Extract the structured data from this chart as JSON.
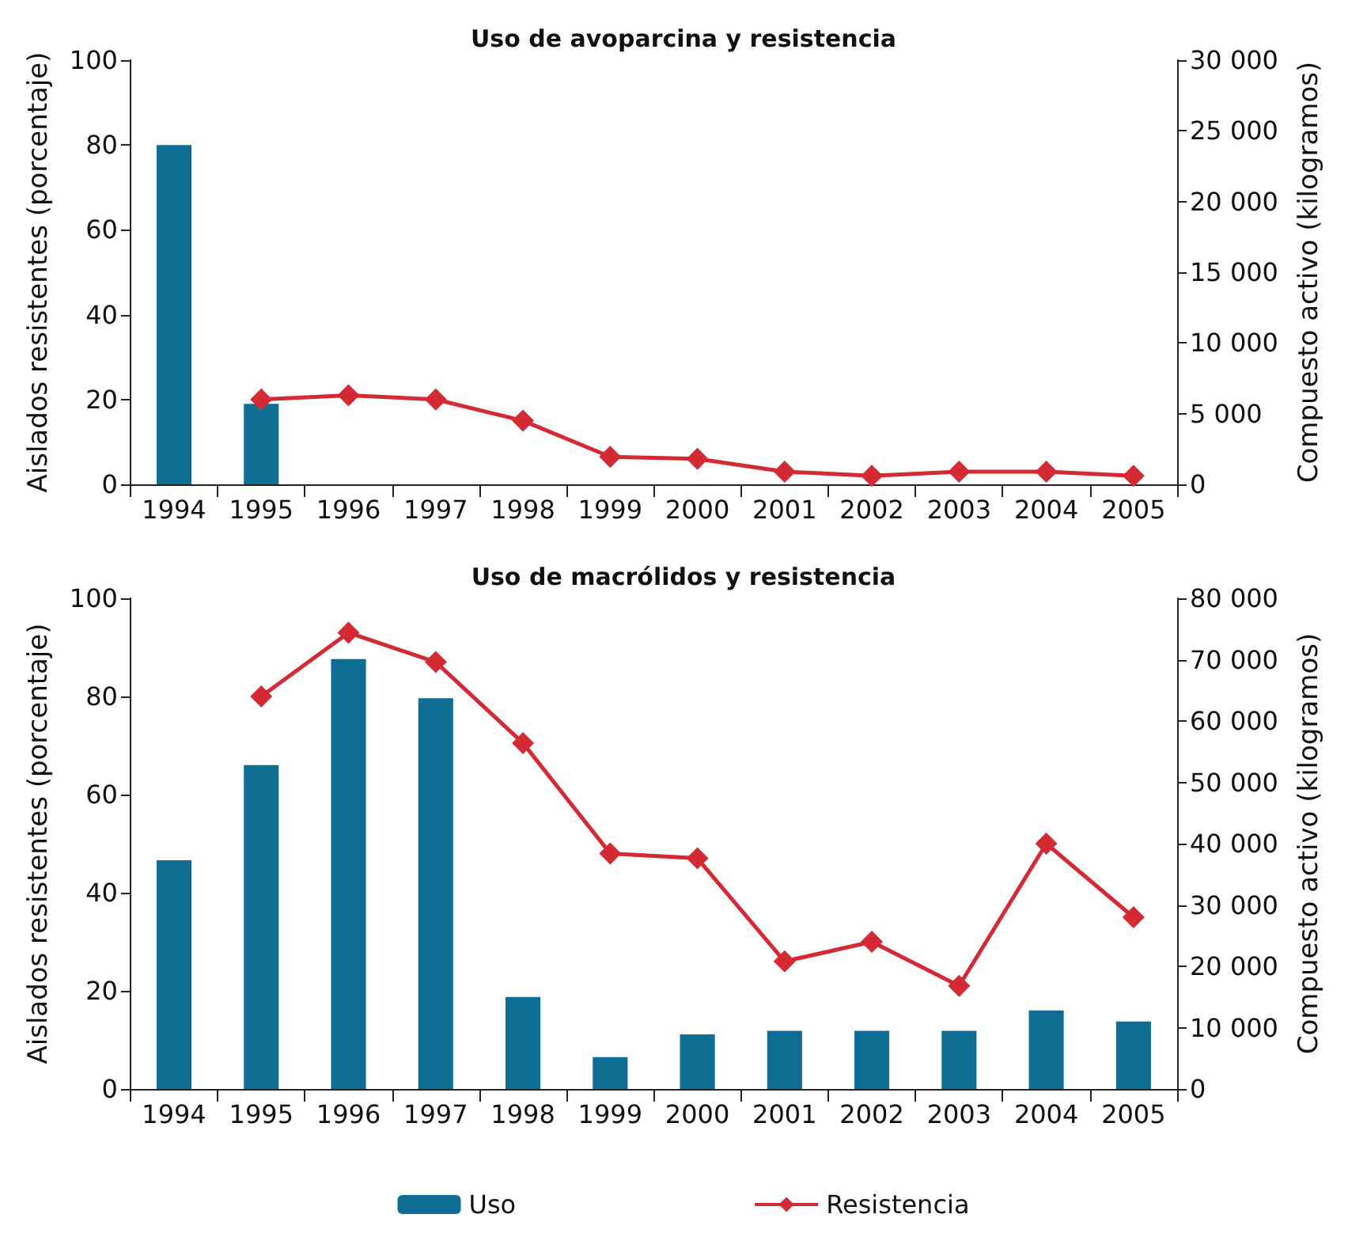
{
  "chart_data": [
    {
      "type": "bar",
      "title": "Uso de avoparcina y resistencia",
      "categories": [
        "1994",
        "1995",
        "1996",
        "1997",
        "1998",
        "1999",
        "2000",
        "2001",
        "2002",
        "2003",
        "2004",
        "2005"
      ],
      "series": [
        {
          "axis": "y2",
          "color": "#0e6e94",
          "values": [
            24000,
            5700,
            null,
            null,
            null,
            null,
            null,
            null,
            null,
            null,
            null,
            null
          ]
        },
        {
          "type": "line",
          "color": "#d42a34",
          "values": [
            null,
            20,
            21,
            20,
            15,
            6.5,
            6,
            3,
            2,
            3,
            3,
            2
          ]
        }
      ],
      "ylabel": "Aislados resistentes (porcentaje)",
      "y2label": "Compuesto activo (kilogramos)",
      "ylim": [
        0,
        100
      ],
      "yticks": [
        0,
        20,
        40,
        60,
        80,
        100
      ],
      "y2lim": [
        0,
        30000
      ],
      "y2ticks": [
        0,
        {
          "value": 5000,
          "label": "5 000"
        },
        {
          "value": 10000,
          "label": "10 000"
        },
        {
          "value": 15000,
          "label": "15 000"
        },
        {
          "value": 20000,
          "label": "20 000"
        },
        {
          "value": 25000,
          "label": "25 000"
        },
        {
          "value": 30000,
          "label": "30 000"
        }
      ],
      "grid": false,
      "legend": false,
      "marker": "diamond",
      "line_style": "solid"
    },
    {
      "type": "bar",
      "title": "Uso de macrólidos y resistencia",
      "categories": [
        "1994",
        "1995",
        "1996",
        "1997",
        "1998",
        "1999",
        "2000",
        "2001",
        "2002",
        "2003",
        "2004",
        "2005"
      ],
      "series": [
        {
          "axis": "y2",
          "name": "Uso",
          "color": "#0e6e94",
          "values": [
            37300,
            52800,
            70100,
            63700,
            15000,
            5200,
            8900,
            9500,
            9500,
            9500,
            12800,
            11000
          ]
        },
        {
          "type": "line",
          "name": "Resistencia",
          "color": "#d42a34",
          "values": [
            null,
            80,
            93,
            87,
            70.5,
            48,
            47,
            26,
            30,
            21,
            50,
            35
          ]
        }
      ],
      "ylabel": "Aislados resistentes (porcentaje)",
      "y2label": "Compuesto activo (kilogramos)",
      "ylim": [
        0,
        100
      ],
      "yticks": [
        0,
        20,
        40,
        60,
        80,
        100
      ],
      "y2lim": [
        0,
        80000
      ],
      "y2ticks": [
        0,
        {
          "value": 10000,
          "label": "10 000"
        },
        {
          "value": 20000,
          "label": "20 000"
        },
        {
          "value": 30000,
          "label": "30 000"
        },
        {
          "value": 40000,
          "label": "40 000"
        },
        {
          "value": 50000,
          "label": "50 000"
        },
        {
          "value": 60000,
          "label": "60 000"
        },
        {
          "value": 70000,
          "label": "70 000"
        },
        {
          "value": 80000,
          "label": "80 000"
        }
      ],
      "grid": false,
      "legend": "bottom",
      "marker": "diamond",
      "line_style": "solid"
    }
  ]
}
